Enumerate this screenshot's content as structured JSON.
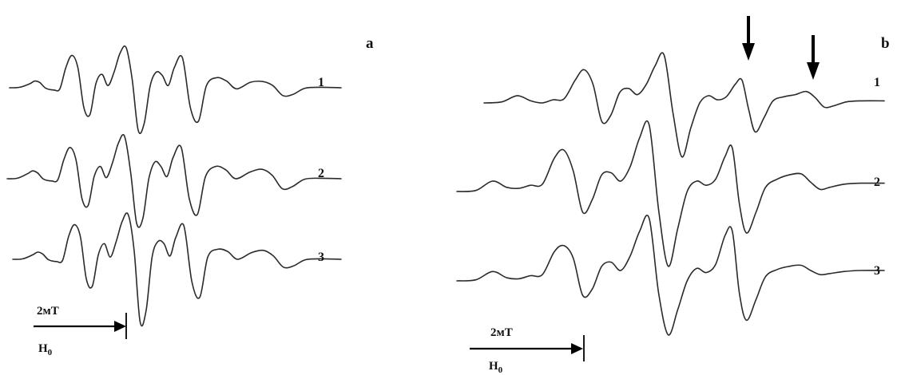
{
  "figure": {
    "panels": [
      {
        "id": "a",
        "label": "a",
        "scale_label": "2мT",
        "field_label": "H",
        "field_subscript": "0",
        "trace_labels": [
          "1",
          "2",
          "3"
        ],
        "has_markers": false
      },
      {
        "id": "b",
        "label": "b",
        "scale_label": "2мT",
        "field_label": "H",
        "field_subscript": "0",
        "trace_labels": [
          "1",
          "2",
          "3"
        ],
        "has_markers": true,
        "marker_count": 2
      }
    ]
  },
  "chart_data": [
    {
      "type": "line",
      "title": "",
      "panel": "a",
      "xlabel": "H0",
      "ylabel": "",
      "x_scale_bar": "2 mT",
      "series": [
        {
          "name": "1",
          "x": [
            0,
            0.5,
            1.0,
            1.25,
            1.5,
            1.8,
            2.2,
            2.5,
            2.8,
            3.1,
            3.4,
            3.7,
            4.0,
            4.3,
            4.6,
            4.9,
            5.2,
            5.5,
            5.8,
            6.1,
            6.4,
            6.7,
            7.0,
            7.3,
            7.6,
            7.9,
            8.2,
            8.6,
            9.0,
            9.4,
            9.8,
            10.3,
            10.8,
            11.3,
            12.0,
            12.6,
            13.1,
            13.6,
            14.1,
            14.7,
            15.5,
            16.5
          ],
          "y": [
            0,
            0.02,
            0.18,
            0.3,
            0.24,
            -0.02,
            -0.1,
            -0.05,
            0.9,
            1.45,
            0.9,
            -0.9,
            -1.2,
            0.2,
            0.6,
            0.1,
            0.7,
            1.55,
            1.8,
            0.4,
            -1.9,
            -1.6,
            0.1,
            0.7,
            0.55,
            0.1,
            0.9,
            1.35,
            -0.9,
            -1.5,
            0.1,
            0.45,
            0.3,
            -0.05,
            0.25,
            0.28,
            0.1,
            -0.35,
            -0.3,
            -0.02,
            0.02,
            0
          ]
        },
        {
          "name": "2",
          "x": [
            0,
            0.5,
            1.0,
            1.25,
            1.5,
            1.8,
            2.2,
            2.5,
            2.8,
            3.1,
            3.4,
            3.7,
            4.0,
            4.3,
            4.6,
            4.9,
            5.2,
            5.5,
            5.8,
            6.1,
            6.4,
            6.7,
            7.0,
            7.3,
            7.6,
            7.9,
            8.2,
            8.6,
            9.0,
            9.4,
            9.8,
            10.3,
            10.8,
            11.3,
            12.0,
            12.6,
            13.1,
            13.6,
            14.1,
            14.7,
            15.5,
            16.5
          ],
          "y": [
            0,
            0.02,
            0.22,
            0.35,
            0.26,
            -0.02,
            -0.1,
            -0.05,
            0.85,
            1.4,
            0.85,
            -0.9,
            -1.2,
            0.1,
            0.55,
            0.05,
            0.7,
            1.6,
            1.9,
            0.3,
            -2.0,
            -1.8,
            0.0,
            0.75,
            0.55,
            0.1,
            0.95,
            1.4,
            -0.9,
            -1.6,
            0.1,
            0.55,
            0.4,
            0.0,
            0.3,
            0.42,
            0.15,
            -0.45,
            -0.35,
            -0.02,
            0.02,
            0
          ]
        },
        {
          "name": "3",
          "x": [
            0,
            0.5,
            1.0,
            1.25,
            1.5,
            1.8,
            2.2,
            2.5,
            2.8,
            3.1,
            3.4,
            3.7,
            4.0,
            4.3,
            4.6,
            4.9,
            5.2,
            5.5,
            5.8,
            6.1,
            6.4,
            6.7,
            7.0,
            7.3,
            7.6,
            7.9,
            8.2,
            8.6,
            9.0,
            9.4,
            9.8,
            10.3,
            10.8,
            11.3,
            12.0,
            12.6,
            13.1,
            13.6,
            14.1,
            14.7,
            15.5,
            16.5
          ],
          "y": [
            0,
            0.02,
            0.2,
            0.32,
            0.24,
            -0.02,
            -0.1,
            -0.05,
            1.0,
            1.55,
            1.0,
            -0.9,
            -1.2,
            0.2,
            0.7,
            0.1,
            0.8,
            1.7,
            2.0,
            0.4,
            -2.8,
            -2.3,
            0.1,
            0.8,
            0.7,
            0.15,
            1.0,
            1.5,
            -1.0,
            -1.7,
            0.1,
            0.45,
            0.35,
            0.0,
            0.3,
            0.4,
            0.15,
            -0.35,
            -0.3,
            -0.02,
            0.02,
            0
          ]
        }
      ]
    },
    {
      "type": "line",
      "title": "",
      "panel": "b",
      "xlabel": "H0",
      "ylabel": "",
      "x_scale_bar": "2 mT",
      "markers_at_x": [
        11.6,
        14.5
      ],
      "series": [
        {
          "name": "1",
          "x": [
            0,
            0.8,
            1.5,
            2.1,
            2.6,
            3.1,
            3.6,
            4.1,
            4.5,
            4.9,
            5.3,
            5.7,
            6.1,
            6.5,
            6.9,
            7.3,
            7.7,
            8.1,
            8.5,
            8.9,
            9.3,
            9.7,
            10.1,
            10.5,
            10.9,
            11.3,
            11.6,
            11.9,
            12.2,
            12.6,
            13.0,
            13.5,
            14.0,
            14.5,
            14.9,
            15.3,
            15.7,
            16.3,
            17.0,
            18.0
          ],
          "y": [
            0,
            0.05,
            0.35,
            0.1,
            0.0,
            0.15,
            0.2,
            1.1,
            1.6,
            0.9,
            -0.9,
            -0.6,
            0.5,
            0.7,
            0.4,
            0.9,
            1.8,
            2.3,
            -0.5,
            -2.6,
            -1.2,
            0.0,
            0.35,
            0.15,
            0.3,
            0.9,
            1.1,
            -0.3,
            -1.4,
            -0.7,
            0.1,
            0.3,
            0.4,
            0.55,
            0.25,
            -0.2,
            -0.15,
            0.05,
            0.1,
            0.1
          ]
        },
        {
          "name": "2",
          "x": [
            0,
            0.8,
            1.5,
            2.1,
            2.6,
            3.1,
            3.6,
            4.1,
            4.5,
            4.9,
            5.3,
            5.7,
            6.1,
            6.5,
            6.9,
            7.3,
            7.7,
            8.1,
            8.5,
            8.9,
            9.3,
            9.7,
            10.1,
            10.5,
            10.9,
            11.3,
            11.6,
            11.9,
            12.2,
            12.6,
            13.0,
            13.5,
            14.0,
            14.5,
            14.9,
            15.3,
            15.7,
            16.3,
            17.0,
            18.0
          ],
          "y": [
            0,
            0.05,
            0.5,
            0.2,
            0.15,
            0.3,
            0.35,
            1.6,
            2.0,
            1.0,
            -1.0,
            -0.4,
            0.8,
            0.9,
            0.5,
            1.2,
            2.6,
            3.2,
            -0.9,
            -3.6,
            -1.8,
            0.0,
            0.5,
            0.3,
            0.6,
            1.7,
            2.1,
            -0.6,
            -2.0,
            -1.0,
            0.2,
            0.6,
            0.8,
            0.85,
            0.45,
            0.1,
            0.2,
            0.35,
            0.4,
            0.4
          ]
        },
        {
          "name": "3",
          "x": [
            0,
            0.8,
            1.5,
            2.1,
            2.6,
            3.1,
            3.6,
            4.1,
            4.5,
            4.9,
            5.3,
            5.7,
            6.1,
            6.5,
            6.9,
            7.3,
            7.7,
            8.1,
            8.5,
            8.9,
            9.3,
            9.7,
            10.1,
            10.5,
            10.9,
            11.3,
            11.6,
            11.9,
            12.2,
            12.6,
            13.0,
            13.5,
            14.0,
            14.5,
            14.9,
            15.3,
            15.7,
            16.3,
            17.0,
            18.0
          ],
          "y": [
            0,
            0.05,
            0.45,
            0.15,
            0.1,
            0.25,
            0.3,
            1.4,
            1.7,
            1.1,
            -0.7,
            -0.4,
            0.7,
            0.9,
            0.5,
            1.2,
            2.4,
            3.0,
            -0.6,
            -2.6,
            -1.4,
            0.0,
            0.6,
            0.4,
            0.8,
            2.2,
            2.4,
            -0.6,
            -1.9,
            -0.9,
            0.2,
            0.55,
            0.7,
            0.75,
            0.5,
            0.3,
            0.35,
            0.45,
            0.5,
            0.5
          ]
        }
      ]
    }
  ]
}
